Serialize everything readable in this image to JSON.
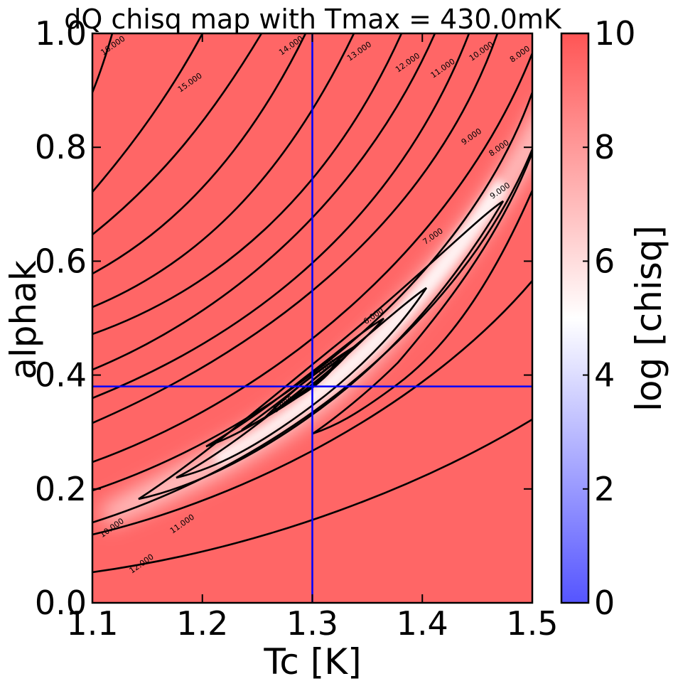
{
  "chart_data": {
    "type": "heatmap",
    "title": "dQ chisq map with Tmax = 430.0mK",
    "xlabel": "Tc [K]",
    "ylabel": "alphak",
    "xlim": [
      1.1,
      1.5
    ],
    "ylim": [
      0.0,
      1.0
    ],
    "xticks": [
      "1.1",
      "1.2",
      "1.3",
      "1.4",
      "1.5"
    ],
    "yticks": [
      "0.0",
      "0.2",
      "0.4",
      "0.6",
      "0.8",
      "1.0"
    ],
    "colorbar": {
      "label": "log [chisq]",
      "range": [
        0,
        10
      ],
      "ticks": [
        "0",
        "2",
        "4",
        "6",
        "8",
        "10"
      ],
      "colors": [
        "#5555ff",
        "#ffffff",
        "#ff5555"
      ]
    },
    "best_fit": {
      "Tc": 1.3,
      "alphak": 0.38,
      "color": "#0000ff"
    },
    "contour_labels": [
      {
        "text": "16.000",
        "x": 1.12,
        "y": 0.975
      },
      {
        "text": "15.000",
        "x": 1.19,
        "y": 0.91
      },
      {
        "text": "14.000",
        "x": 1.282,
        "y": 0.975
      },
      {
        "text": "13.000",
        "x": 1.344,
        "y": 0.965
      },
      {
        "text": "12.000",
        "x": 1.388,
        "y": 0.945
      },
      {
        "text": "11.000",
        "x": 1.42,
        "y": 0.935
      },
      {
        "text": "10.000",
        "x": 1.455,
        "y": 0.965
      },
      {
        "text": "8.000",
        "x": 1.49,
        "y": 0.96
      },
      {
        "text": "9.000",
        "x": 1.446,
        "y": 0.815
      },
      {
        "text": "8.000",
        "x": 1.471,
        "y": 0.795
      },
      {
        "text": "9.000",
        "x": 1.472,
        "y": 0.72
      },
      {
        "text": "7.000",
        "x": 1.411,
        "y": 0.64
      },
      {
        "text": "6.000",
        "x": 1.357,
        "y": 0.5
      },
      {
        "text": "5.000",
        "x": 1.313,
        "y": 0.41
      },
      {
        "text": "5.000",
        "x": 1.275,
        "y": 0.345
      },
      {
        "text": "10.000",
        "x": 1.119,
        "y": 0.128
      },
      {
        "text": "11.000",
        "x": 1.183,
        "y": 0.135
      },
      {
        "text": "12.000",
        "x": 1.146,
        "y": 0.065
      }
    ]
  }
}
